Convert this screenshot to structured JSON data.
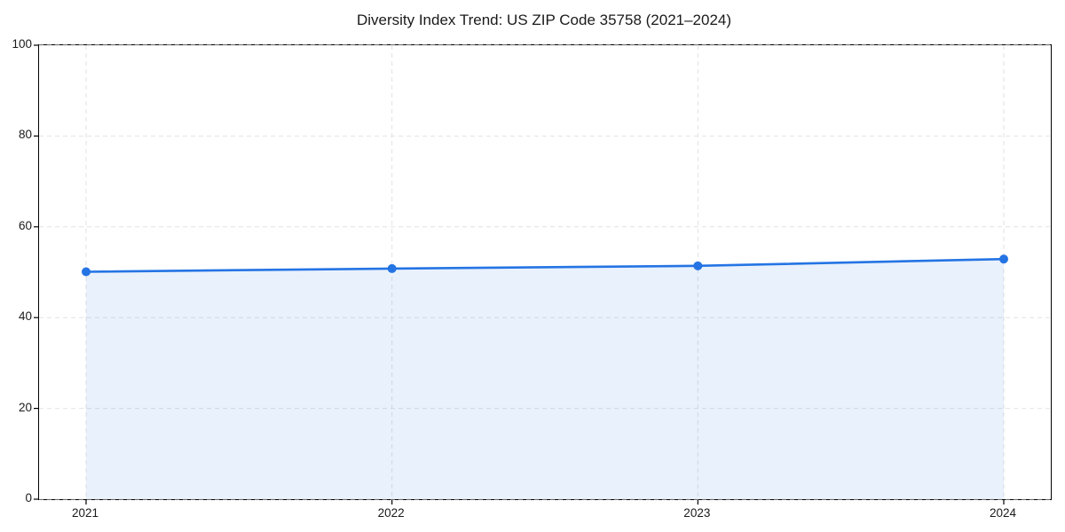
{
  "page": {
    "background": "#ffffff"
  },
  "chart_data": {
    "type": "area",
    "title": "Diversity Index Trend: US ZIP Code 35758 (2021–2024)",
    "series_name": "Diversity Index",
    "categories": [
      "2021",
      "2022",
      "2023",
      "2024"
    ],
    "values": [
      50.1,
      50.8,
      51.4,
      52.9
    ],
    "xlabel": "",
    "ylabel": "",
    "ylim": [
      0,
      100
    ],
    "yticks": [
      0,
      20,
      40,
      60,
      80,
      100
    ],
    "grid": true,
    "grid_style": "dashed",
    "legend": false,
    "marker": "circle",
    "colors": {
      "line": "#2474e4",
      "marker": "#2474e4",
      "fill": "rgba(36,116,228,0.10)",
      "grid": "#e2e2e2",
      "spine": "#000000",
      "text": "#1a1a1a"
    }
  }
}
